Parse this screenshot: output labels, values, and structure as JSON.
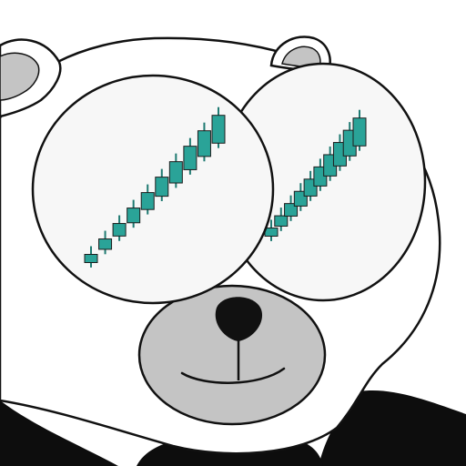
{
  "colors": {
    "background": "#ffffff",
    "fur": "#ffffff",
    "outline": "#111111",
    "ear_inner": "#c4c4c4",
    "muzzle": "#c4c4c4",
    "nose": "#111111",
    "suit": "#0d0d0d",
    "eye_fill": "#f7f7f7",
    "candle": "#2aa398",
    "wick": "#1f7a72"
  },
  "icons": {
    "left_eye": "candlestick-uptrend-icon",
    "right_eye": "candlestick-uptrend-icon",
    "nose": "nose-icon"
  },
  "candles": {
    "left_eye": [
      1,
      2,
      3,
      4,
      5,
      6,
      7,
      8,
      9,
      10
    ],
    "right_eye": [
      1,
      2,
      3,
      4,
      5,
      6,
      7,
      8,
      9,
      10
    ]
  }
}
